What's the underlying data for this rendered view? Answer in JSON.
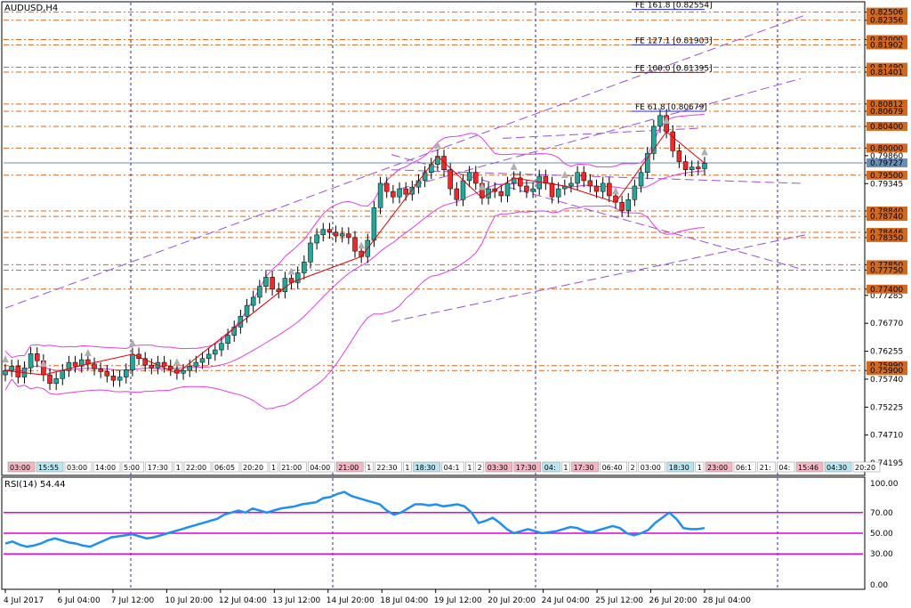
{
  "window": {
    "title": "AUDUSD,H4"
  },
  "colors": {
    "bull": "#26a69a",
    "bear": "#ef2929",
    "band": "#e040e0",
    "channel": "#9a4fd6",
    "level": "#d2691e",
    "vline": "#2424d6",
    "rsi": "#1e8ff0",
    "rsi_level": "#e000e0",
    "price_line": "#6a8fb5",
    "zigzag": "#e00000"
  },
  "chart_data": [
    {
      "type": "candlestick",
      "name": "AUDUSD,H4",
      "ylim": [
        0.74,
        0.8268
      ],
      "price_axis": [
        "0.82506",
        "0.82356",
        "0.82000",
        "0.81902",
        "0.81490",
        "0.81401",
        "0.80812",
        "0.80679",
        "0.80400",
        "0.80000",
        "0.79860",
        "0.79727",
        "0.79500",
        "0.79345",
        "0.78840",
        "0.78740",
        "0.78446",
        "0.78350",
        "0.77850",
        "0.77750",
        "0.77400",
        "0.77285",
        "0.76770",
        "0.76255",
        "0.75900",
        "0.75740",
        "0.75225",
        "0.74710",
        "0.74195"
      ],
      "horizontal_levels": [
        0.82506,
        0.82356,
        0.82,
        0.81902,
        0.8149,
        0.81401,
        0.80812,
        0.80679,
        0.804,
        0.8,
        0.795,
        0.7884,
        0.7874,
        0.78446,
        0.7835,
        0.7785,
        0.7775,
        0.774,
        0.7599,
        0.759
      ],
      "level_tags": [
        "0.82506",
        "0.82356",
        "0.82000",
        "0.81902",
        "0.81490",
        "0.81401",
        "0.80812",
        "0.80679",
        "0.80400",
        "0.80000",
        "0.79500",
        "0.78840",
        "0.78740",
        "0.78446",
        "0.78350",
        "0.77850",
        "0.77750",
        "0.77400",
        "0.75990",
        "0.75900"
      ],
      "current_price": "0.79727",
      "fibo_labels": [
        "FE 161.8 [0.82554]",
        "FE 127.1 [0.81903]",
        "FE 100.0 [0.81395]",
        "FE 61.8 [0.80679]"
      ],
      "fibo_values": [
        0.82554,
        0.81903,
        0.81395,
        0.80679
      ],
      "close": [
        0.759,
        0.7598,
        0.7578,
        0.7595,
        0.7621,
        0.7608,
        0.7582,
        0.7566,
        0.7575,
        0.759,
        0.7605,
        0.7598,
        0.761,
        0.7602,
        0.7593,
        0.7588,
        0.758,
        0.7572,
        0.7578,
        0.7591,
        0.762,
        0.7612,
        0.76,
        0.7595,
        0.7605,
        0.7598,
        0.7592,
        0.7585,
        0.759,
        0.7598,
        0.7605,
        0.7612,
        0.762,
        0.7628,
        0.764,
        0.7655,
        0.767,
        0.769,
        0.771,
        0.7725,
        0.7745,
        0.7762,
        0.774,
        0.7735,
        0.776,
        0.7752,
        0.777,
        0.779,
        0.7825,
        0.784,
        0.785,
        0.7845,
        0.7838,
        0.7842,
        0.7835,
        0.781,
        0.78,
        0.783,
        0.789,
        0.7935,
        0.792,
        0.791,
        0.7925,
        0.7915,
        0.7928,
        0.794,
        0.7955,
        0.797,
        0.7985,
        0.796,
        0.7925,
        0.7905,
        0.794,
        0.7955,
        0.7935,
        0.7908,
        0.7925,
        0.792,
        0.7912,
        0.7935,
        0.7945,
        0.793,
        0.792,
        0.7925,
        0.7948,
        0.7935,
        0.791,
        0.7925,
        0.793,
        0.7935,
        0.7955,
        0.794,
        0.793,
        0.792,
        0.7935,
        0.7912,
        0.79,
        0.7885,
        0.7905,
        0.793,
        0.7955,
        0.799,
        0.804,
        0.806,
        0.803,
        0.7995,
        0.7975,
        0.796,
        0.7965,
        0.7962,
        0.7972
      ],
      "time_labels": [
        "4 Jul 2017",
        "6 Jul 04:00",
        "7 Jul 12:00",
        "10 Jul 20:00",
        "12 Jul 04:00",
        "13 Jul 12:00",
        "14 Jul 20:00",
        "18 Jul 04:00",
        "19 Jul 12:00",
        "20 Jul 20:00",
        "24 Jul 04:00",
        "25 Jul 12:00",
        "26 Jul 20:00",
        "28 Jul 04:00"
      ]
    },
    {
      "type": "line",
      "name": "RSI(14) 54.44",
      "ylim": [
        0,
        100
      ],
      "axis_ticks": [
        "100.00",
        "70.00",
        "50.00",
        "30.00",
        "0.00"
      ],
      "levels": [
        70,
        50,
        30
      ],
      "values": [
        40,
        42,
        39,
        37,
        38,
        40,
        43,
        45,
        43,
        41,
        40,
        38,
        37,
        40,
        43,
        46,
        47,
        48,
        49,
        47,
        45,
        46,
        48,
        50,
        52,
        54,
        56,
        58,
        60,
        62,
        64,
        68,
        70,
        72,
        70,
        74,
        72,
        70,
        72,
        74,
        75,
        76,
        78,
        79,
        80,
        84,
        85,
        88,
        90,
        86,
        84,
        82,
        80,
        78,
        72,
        68,
        70,
        74,
        78,
        78,
        77,
        78,
        76,
        77,
        78,
        76,
        70,
        60,
        62,
        65,
        60,
        54,
        50,
        52,
        54,
        52,
        50,
        51,
        52,
        54,
        56,
        55,
        52,
        51,
        53,
        55,
        57,
        55,
        50,
        48,
        50,
        53,
        60,
        65,
        70,
        64,
        55,
        54,
        54,
        55
      ]
    }
  ],
  "event_tags": [
    {
      "text": "03:00",
      "color": "#f4b6c2"
    },
    {
      "text": "15:55",
      "color": "#b8e6f0"
    },
    {
      "text": "03:00",
      "color": "#ffffff"
    },
    {
      "text": "14:00",
      "color": "#ffffff"
    },
    {
      "text": "5:00",
      "color": "#ffffff"
    },
    {
      "text": "17:30",
      "color": "#ffffff"
    },
    {
      "text": "1",
      "color": "#ffffff"
    },
    {
      "text": "22:00",
      "color": "#ffffff"
    },
    {
      "text": "06:05",
      "color": "#ffffff"
    },
    {
      "text": "20:20",
      "color": "#ffffff"
    },
    {
      "text": "1",
      "color": "#ffffff"
    },
    {
      "text": "21:00",
      "color": "#ffffff"
    },
    {
      "text": "04:00",
      "color": "#ffffff"
    },
    {
      "text": "21:00",
      "color": "#f4b6c2"
    },
    {
      "text": "1",
      "color": "#ffffff"
    },
    {
      "text": "22:30",
      "color": "#ffffff"
    },
    {
      "text": "1",
      "color": "#ffffff"
    },
    {
      "text": "18:30",
      "color": "#b8e6f0"
    },
    {
      "text": "04:1",
      "color": "#ffffff"
    },
    {
      "text": "1",
      "color": "#ffffff"
    },
    {
      "text": "2",
      "color": "#ffffff"
    },
    {
      "text": "03:30",
      "color": "#f4b6c2"
    },
    {
      "text": "17:30",
      "color": "#f4b6c2"
    },
    {
      "text": "04:",
      "color": "#b8e6f0"
    },
    {
      "text": "1",
      "color": "#ffffff"
    },
    {
      "text": "17:30",
      "color": "#f4b6c2"
    },
    {
      "text": "06:40",
      "color": "#ffffff"
    },
    {
      "text": "2",
      "color": "#ffffff"
    },
    {
      "text": "03:00",
      "color": "#ffffff"
    },
    {
      "text": "18:30",
      "color": "#b8e6f0"
    },
    {
      "text": "1",
      "color": "#ffffff"
    },
    {
      "text": "23:00",
      "color": "#f4b6c2"
    },
    {
      "text": "06:1",
      "color": "#ffffff"
    },
    {
      "text": "21:",
      "color": "#ffffff"
    },
    {
      "text": "04:",
      "color": "#ffffff"
    },
    {
      "text": "15:46",
      "color": "#f4b6c2"
    },
    {
      "text": "04:30",
      "color": "#b8e6f0"
    },
    {
      "text": "20:20",
      "color": "#ffffff"
    }
  ]
}
